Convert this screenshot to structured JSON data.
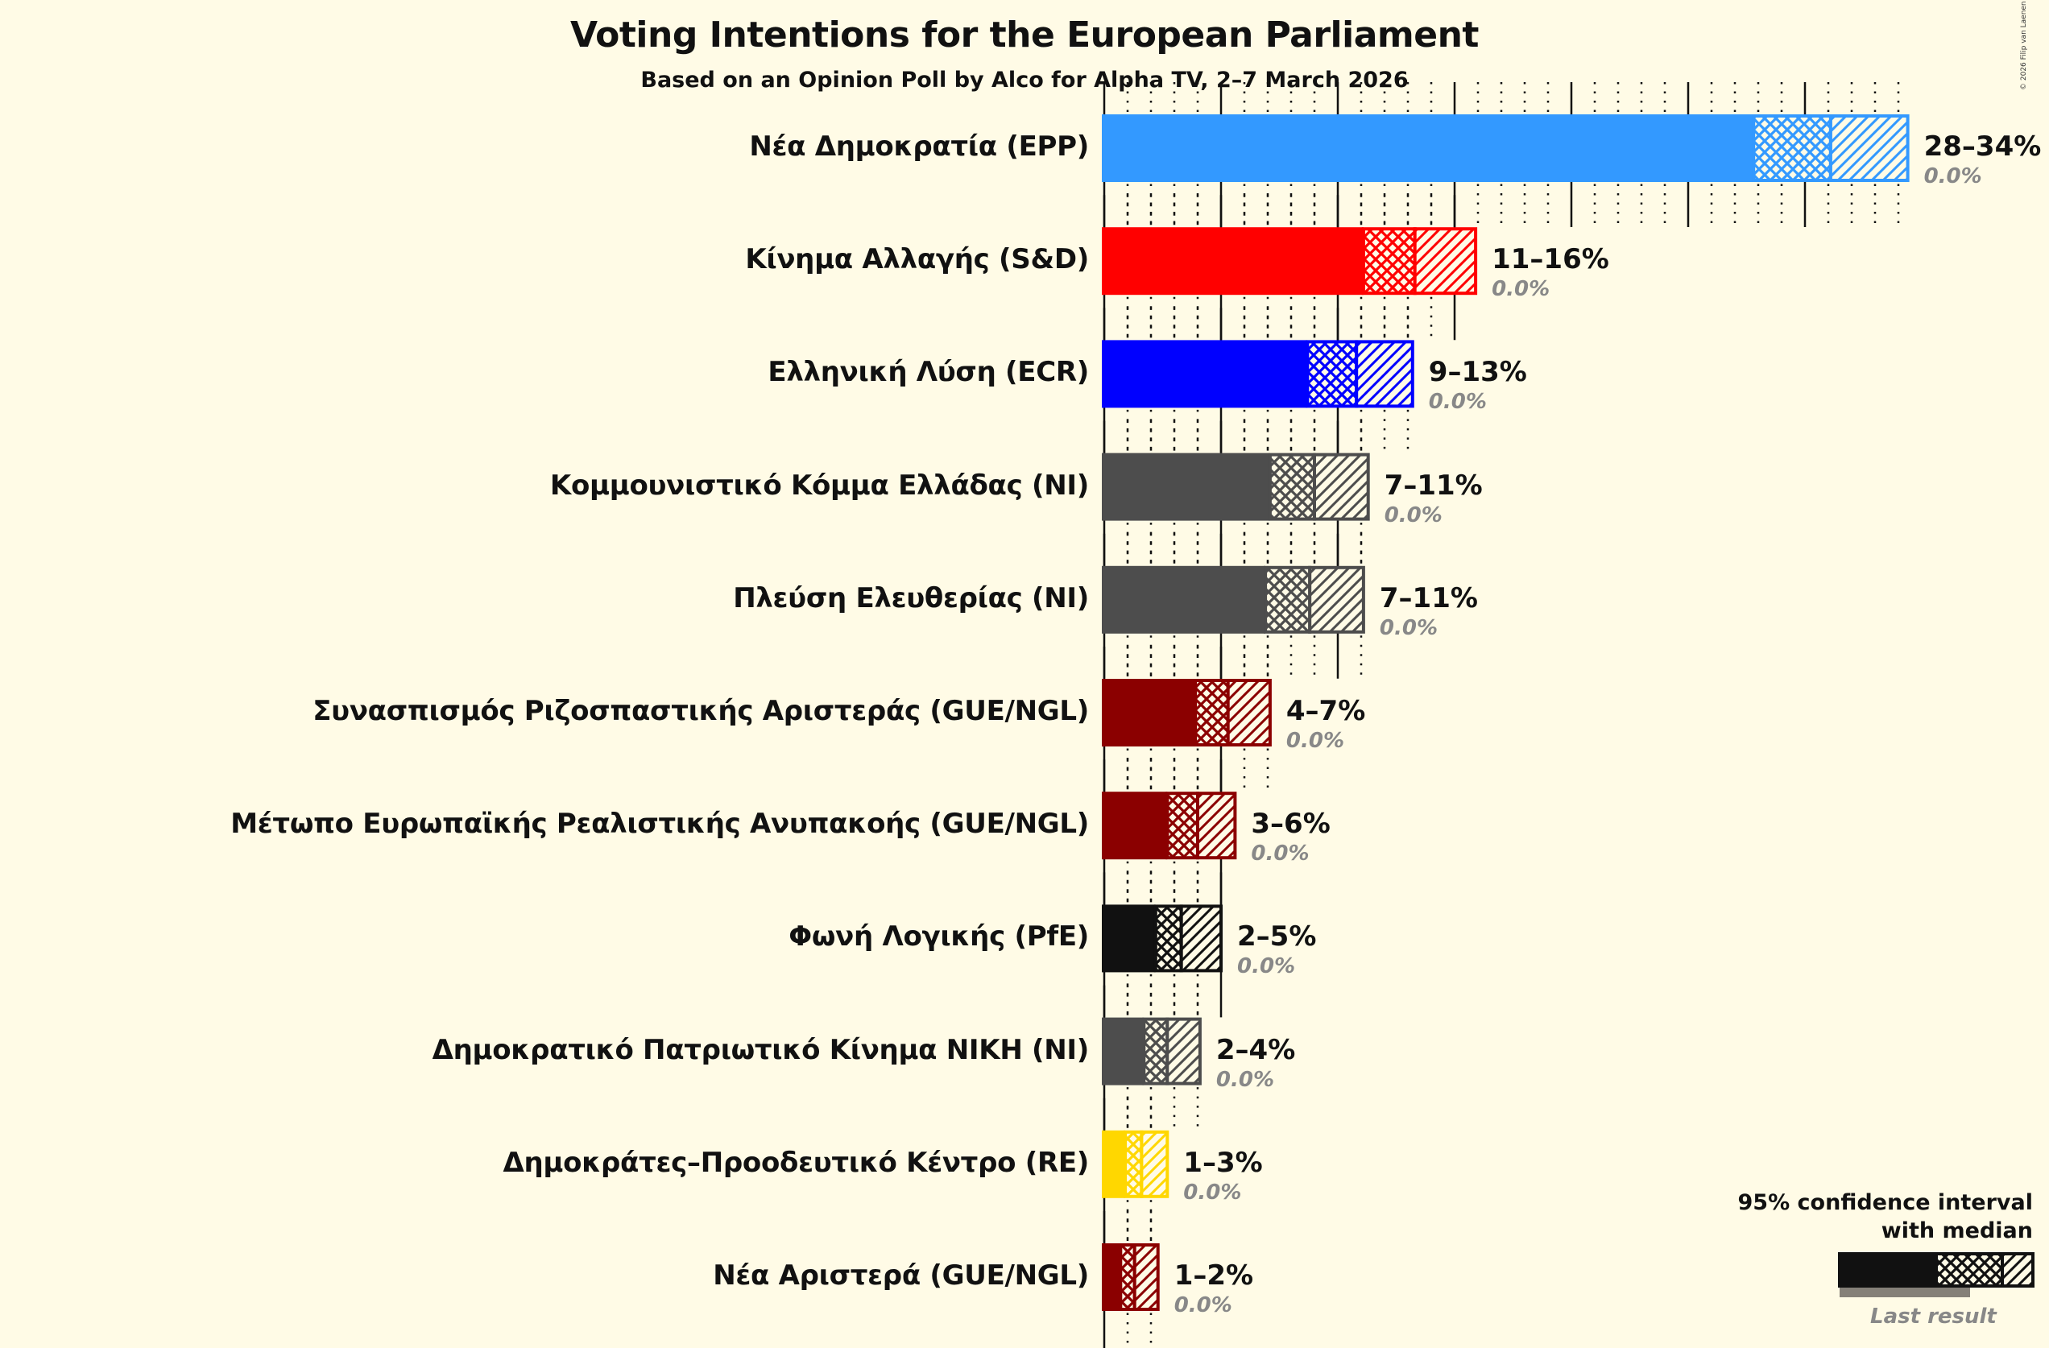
{
  "header": {
    "title": "Voting Intentions for the European Parliament",
    "subtitle": "Based on an Opinion Poll by Alco for Alpha TV, 2–7 March 2026",
    "copyright": "© 2026 Filip van Laenen"
  },
  "legend": {
    "title_line1": "95% confidence interval",
    "title_line2": "with median",
    "last_result_label": "Last result"
  },
  "chart_data": {
    "type": "bar",
    "orientation": "horizontal",
    "title": "Voting Intentions for the European Parliament",
    "subtitle": "Based on an Opinion Poll by Alco for Alpha TV, 2–7 March 2026",
    "xlabel": "",
    "ylabel": "",
    "xlim": [
      0,
      35
    ],
    "grid": {
      "major_step": 5,
      "minor_step": 1,
      "major_style": "solid",
      "minor_style": "dotted"
    },
    "legend_position": "bottom-right",
    "note": "The range labels (e.g. 28–34%) and last-result labels (0.0%) are shown in the chart. The ci_low, median and ci_high values below are estimated from bar pixel positions, not taken from labels in the image.",
    "categories": [
      "Νέα Δημοκρατία (EPP)",
      "Κίνημα Αλλαγής (S&D)",
      "Ελληνική Λύση (ECR)",
      "Κομμουνιστικό Κόμμα Ελλάδας (NI)",
      "Πλεύση Ελευθερίας (NI)",
      "Συνασπισμός Ριζοσπαστικής Αριστεράς (GUE/NGL)",
      "Μέτωπο Ευρωπαϊκής Ρεαλιστικής Ανυπακοής (GUE/NGL)",
      "Φωνή Λογικής (PfE)",
      "Δημοκρατικό Πατριωτικό Κίνημα ΝΙΚΗ (NI)",
      "Δημοκράτες–Προοδευτικό Κέντρο (RE)",
      "Νέα Αριστερά (GUE/NGL)"
    ],
    "series": [
      {
        "name": "ci_low_estimated",
        "values": [
          27.8,
          11.1,
          8.7,
          7.1,
          6.9,
          3.9,
          2.7,
          2.2,
          1.7,
          0.9,
          0.7
        ]
      },
      {
        "name": "median_estimated",
        "values": [
          31.1,
          13.3,
          10.8,
          9.0,
          8.8,
          5.3,
          4.0,
          3.3,
          2.7,
          1.6,
          1.3
        ]
      },
      {
        "name": "ci_high_estimated",
        "values": [
          34.4,
          15.9,
          13.2,
          11.3,
          11.1,
          7.1,
          5.6,
          5.0,
          4.1,
          2.7,
          2.3
        ]
      },
      {
        "name": "last_result",
        "values": [
          0.0,
          0.0,
          0.0,
          0.0,
          0.0,
          0.0,
          0.0,
          0.0,
          0.0,
          0.0,
          0.0
        ]
      }
    ],
    "range_labels": [
      "28–34%",
      "11–16%",
      "9–13%",
      "7–11%",
      "7–11%",
      "4–7%",
      "3–6%",
      "2–5%",
      "2–4%",
      "1–3%",
      "1–2%"
    ],
    "last_result_labels": [
      "0.0%",
      "0.0%",
      "0.0%",
      "0.0%",
      "0.0%",
      "0.0%",
      "0.0%",
      "0.0%",
      "0.0%",
      "0.0%",
      "0.0%"
    ],
    "colors": [
      "#3399FF",
      "#FF0000",
      "#0000FF",
      "#4D4D4D",
      "#4D4D4D",
      "#8B0000",
      "#8B0000",
      "#111111",
      "#4D4D4D",
      "#FFD700",
      "#8B0000"
    ]
  }
}
